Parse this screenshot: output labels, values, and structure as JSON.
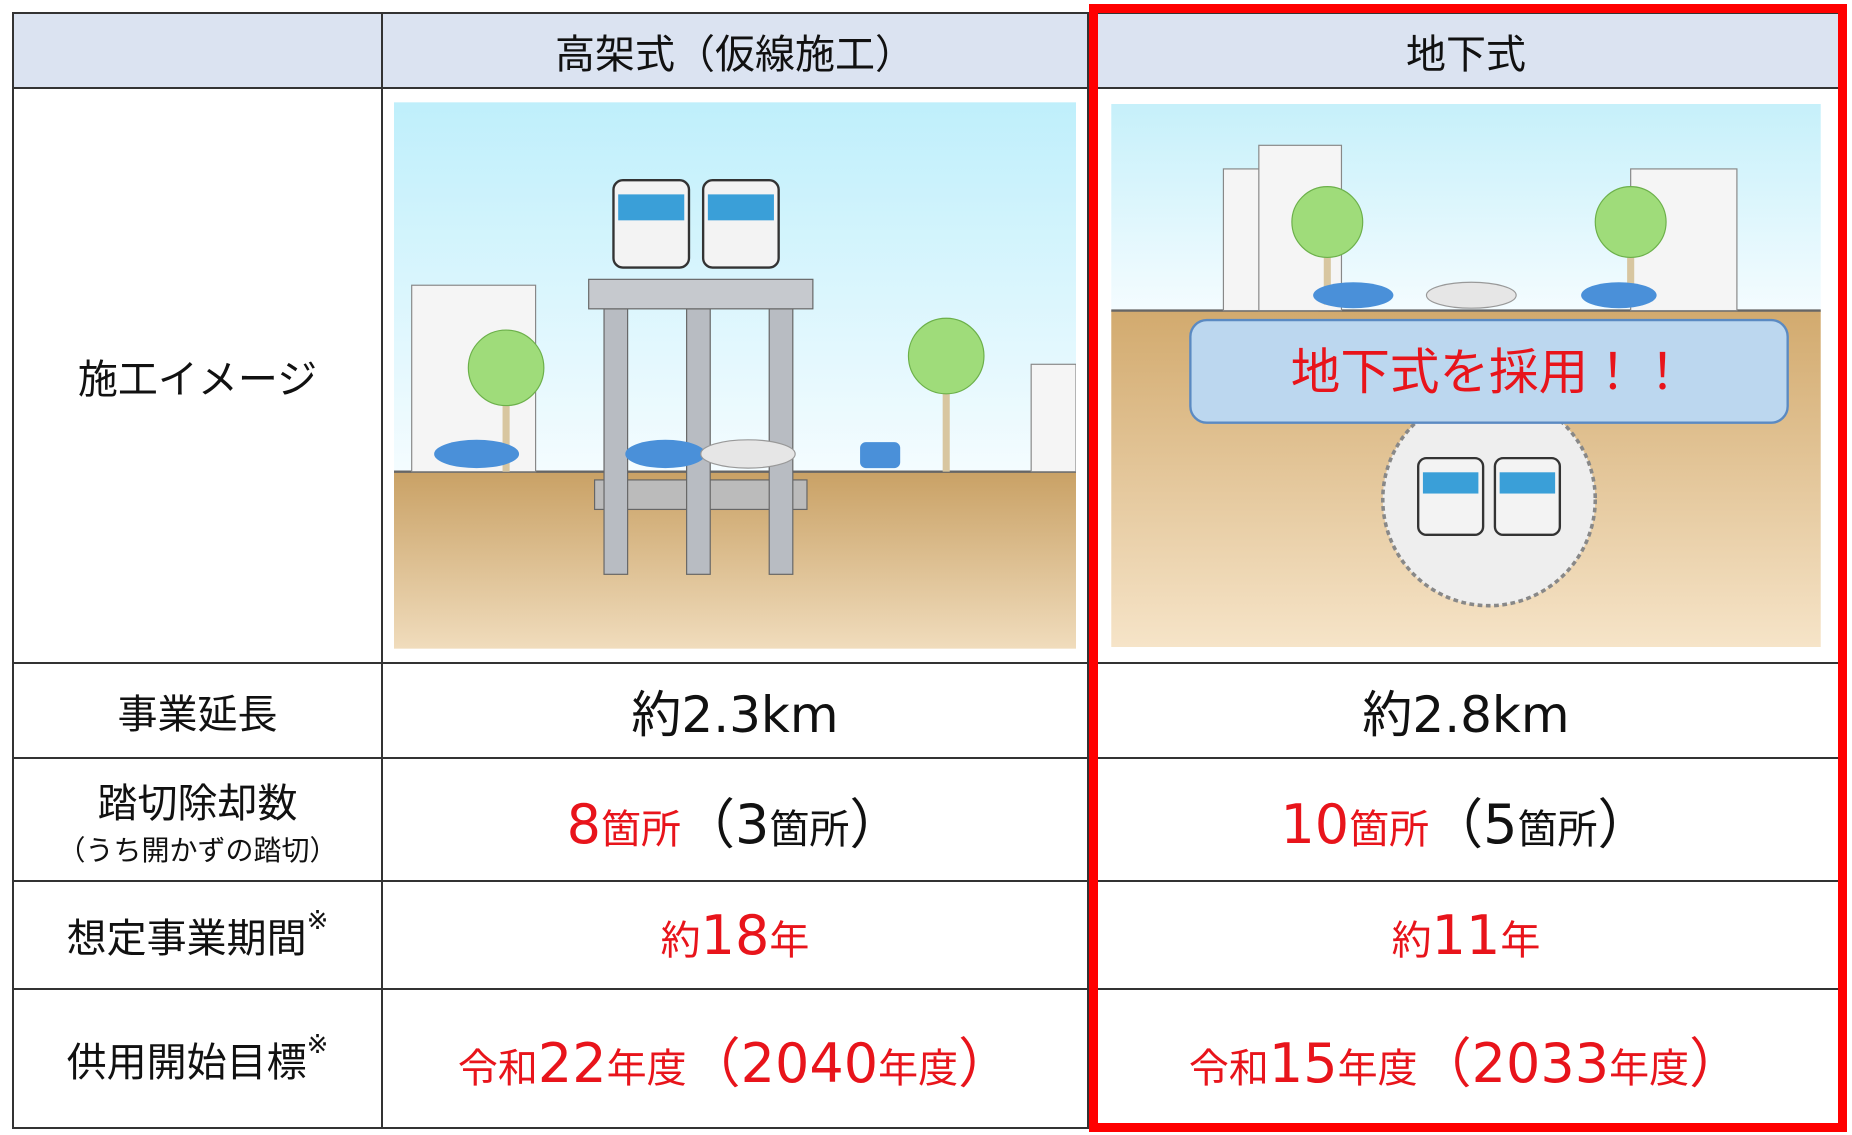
{
  "header": {
    "columns": [
      "高架式（仮線施工）",
      "地下式"
    ]
  },
  "image_row": {
    "label": "施工イメージ",
    "callout": "地下式を採用！！"
  },
  "rows": [
    {
      "label": "事業延長",
      "values": [
        "約2.3km",
        "約2.8km"
      ]
    },
    {
      "label": "踏切除却数",
      "sublabel": "（うち開かずの踏切）",
      "values": [
        [
          "8",
          "箇所",
          "（",
          "3",
          "箇所",
          "）"
        ],
        [
          "10",
          "箇所",
          "（",
          "5",
          "箇所",
          "）"
        ]
      ]
    },
    {
      "label": "想定事業期間",
      "mark": "※",
      "values": [
        "約",
        "18",
        "年",
        "約",
        "11",
        "年"
      ]
    },
    {
      "label": "供用開始目標",
      "mark": "※",
      "values": [
        "令和",
        "22",
        "年度",
        "（",
        "2040",
        "年度",
        "）",
        "令和",
        "15",
        "年度",
        "（",
        "2033",
        "年度",
        "）"
      ]
    }
  ]
}
